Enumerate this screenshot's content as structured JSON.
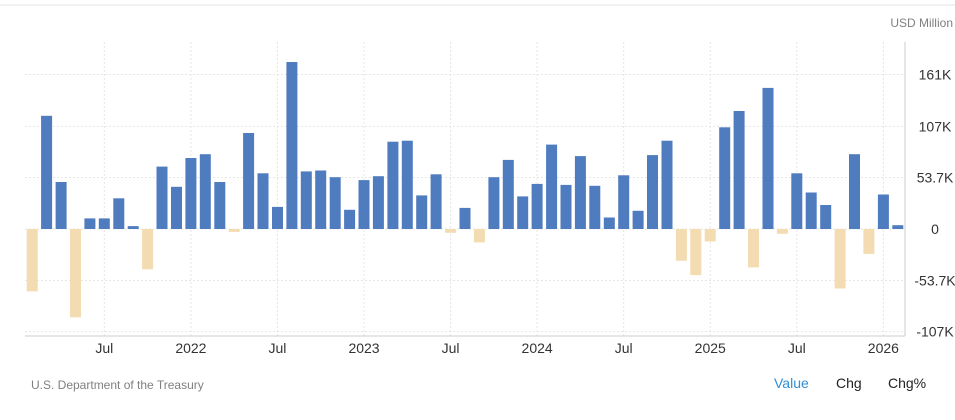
{
  "chart_data": {
    "type": "bar",
    "unit": "USD Million",
    "ylim": [
      -107,
      161
    ],
    "y_ticks": [
      {
        "value": 161,
        "label": "161K"
      },
      {
        "value": 107,
        "label": "107K"
      },
      {
        "value": 53.7,
        "label": "53.7K"
      },
      {
        "value": 0,
        "label": "0"
      },
      {
        "value": -53.7,
        "label": "-53.7K"
      },
      {
        "value": -107,
        "label": "-107K"
      }
    ],
    "x_ticks": [
      {
        "index": 5,
        "label": "Jul"
      },
      {
        "index": 11,
        "label": "2022"
      },
      {
        "index": 17,
        "label": "Jul"
      },
      {
        "index": 23,
        "label": "2023"
      },
      {
        "index": 29,
        "label": "Jul"
      },
      {
        "index": 35,
        "label": "2024"
      },
      {
        "index": 41,
        "label": "Jul"
      },
      {
        "index": 47,
        "label": "2025"
      },
      {
        "index": 53,
        "label": "Jul"
      },
      {
        "index": 59,
        "label": "2026"
      }
    ],
    "values": [
      -65,
      118,
      49,
      -92,
      11,
      11,
      32,
      3,
      -42,
      65,
      44,
      74,
      78,
      49,
      -3,
      100,
      58,
      23,
      174,
      60,
      61,
      54,
      20,
      51,
      55,
      91,
      92,
      35,
      57,
      -4,
      22,
      -14,
      54,
      72,
      34,
      47,
      88,
      46,
      76,
      45,
      12,
      56,
      19,
      77,
      92,
      -33,
      -48,
      -13,
      106,
      123,
      -40,
      147,
      -5,
      58,
      38,
      25,
      -62,
      78,
      -26,
      36,
      4
    ],
    "grid": true,
    "legend": "none",
    "colors": {
      "positive": "#4f7bbf",
      "negative": "#f3dcb1",
      "grid": "#e6e6e6"
    }
  },
  "source": "U.S. Department of the Treasury",
  "tabs": [
    {
      "label": "Value",
      "active": true
    },
    {
      "label": "Chg",
      "active": false
    },
    {
      "label": "Chg%",
      "active": false
    }
  ]
}
